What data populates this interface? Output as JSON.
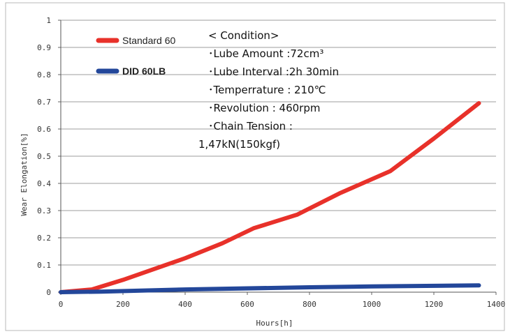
{
  "chart_data": {
    "type": "line",
    "xlabel": "Hours[h]",
    "ylabel": "Wear Elongation[%]",
    "xlim": [
      0,
      1400
    ],
    "ylim": [
      0,
      1
    ],
    "x_ticks": [
      "0",
      "200",
      "400",
      "600",
      "800",
      "1000",
      "1200",
      "1400"
    ],
    "y_ticks": [
      "0",
      "0.1",
      "0.2",
      "0.3",
      "0.4",
      "0.5",
      "0.6",
      "0.7",
      "0.8",
      "0.9",
      "1"
    ],
    "grid": "horizontal",
    "series": [
      {
        "name": "Standard 60",
        "color": "#e8312a",
        "x": [
          0,
          100,
          200,
          400,
          520,
          620,
          760,
          900,
          1060,
          1200,
          1345
        ],
        "y": [
          0,
          0.01,
          0.045,
          0.125,
          0.18,
          0.235,
          0.285,
          0.365,
          0.445,
          0.565,
          0.695
        ]
      },
      {
        "name": "DID 60LB",
        "color": "#23479a",
        "x": [
          0,
          130,
          400,
          800,
          1000,
          1345
        ],
        "y": [
          0,
          0.002,
          0.01,
          0.018,
          0.021,
          0.025
        ]
      }
    ],
    "annotation": {
      "lines": [
        "< Condition>",
        "･Lube Amount :72cm³",
        "･Lube Interval :2h 30min",
        "･Temperrature : 210℃",
        "･Revolution : 460rpm",
        "･Chain Tension :",
        "1,47kN(150kgf)"
      ]
    }
  }
}
